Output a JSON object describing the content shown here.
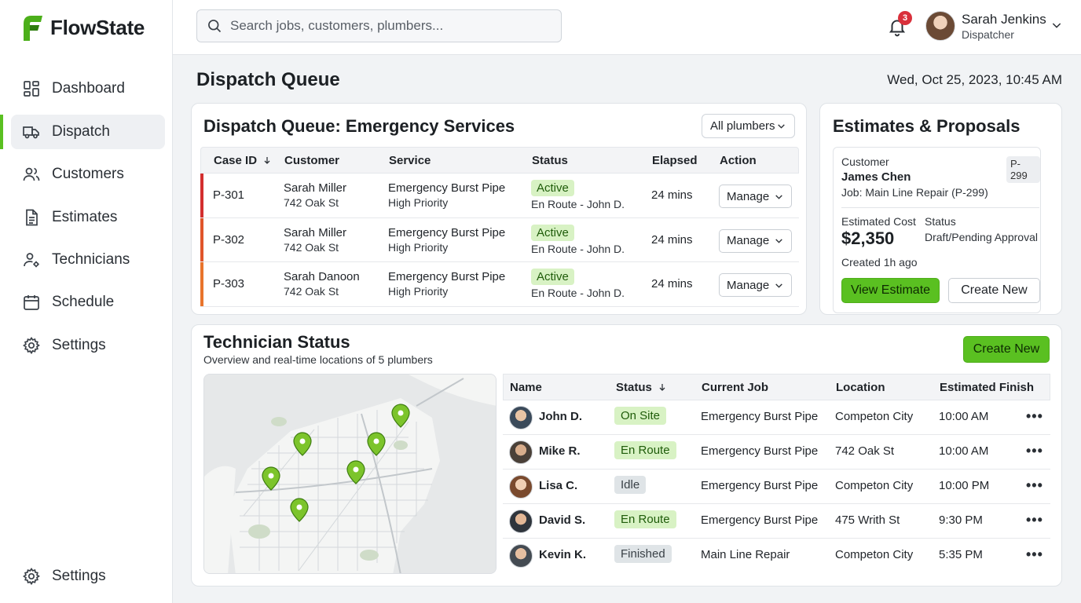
{
  "app": {
    "name": "FlowState"
  },
  "sidebar": {
    "items": [
      {
        "label": "Dashboard",
        "icon": "dashboard-icon"
      },
      {
        "label": "Dispatch",
        "icon": "truck-icon",
        "active": true
      },
      {
        "label": "Customers",
        "icon": "users-icon"
      },
      {
        "label": "Estimates",
        "icon": "document-icon"
      },
      {
        "label": "Technicians",
        "icon": "technician-icon"
      },
      {
        "label": "Schedule",
        "icon": "calendar-icon"
      },
      {
        "label": "Settings",
        "icon": "gear-icon"
      }
    ],
    "footer": {
      "label": "Settings",
      "icon": "gear-icon"
    }
  },
  "topbar": {
    "search_placeholder": "Search jobs, customers, plumbers...",
    "notification_count": "3",
    "user": {
      "name": "Sarah Jenkins",
      "role": "Dispatcher"
    }
  },
  "page": {
    "title": "Dispatch Queue",
    "datetime": "Wed, Oct 25, 2023, 10:45 AM"
  },
  "dispatch": {
    "title": "Dispatch Queue: Emergency Services",
    "filter": "All plumbers",
    "columns": [
      "Case ID",
      "Customer",
      "Service",
      "Status",
      "Elapsed",
      "Action"
    ],
    "rows": [
      {
        "id": "P-301",
        "customer": "Sarah Miller",
        "address": "742 Oak St",
        "service": "Emergency Burst Pipe",
        "priority": "High Priority",
        "status": "Active",
        "status_detail": "En Route - John D.",
        "elapsed": "24 mins",
        "action": "Manage",
        "accent": "#d32f2f"
      },
      {
        "id": "P-302",
        "customer": "Sarah Miller",
        "address": "742 Oak St",
        "service": "Emergency Burst Pipe",
        "priority": "High Priority",
        "status": "Active",
        "status_detail": "En Route - John D.",
        "elapsed": "24 mins",
        "action": "Manage",
        "accent": "#e0552a"
      },
      {
        "id": "P-303",
        "customer": "Sarah Danoon",
        "address": "742 Oak St",
        "service": "Emergency Burst Pipe",
        "priority": "High Priority",
        "status": "Active",
        "status_detail": "En Route - John D.",
        "elapsed": "24 mins",
        "action": "Manage",
        "accent": "#e8742c"
      }
    ]
  },
  "estimates": {
    "title": "Estimates & Proposals",
    "customer_label": "Customer",
    "badge": "P-299",
    "customer_name": "James Chen",
    "job": "Job: Main Line Repair (P-299)",
    "cost_label": "Estimated Cost",
    "cost": "$2,350",
    "status_label": "Status",
    "status": "Draft/Pending Approval",
    "created": "Created 1h ago",
    "view_button": "View Estimate",
    "create_button": "Create New"
  },
  "technicians": {
    "title": "Technician Status",
    "subtitle": "Overview and real-time locations of 5 plumbers",
    "create_button": "Create New",
    "columns": [
      "Name",
      "Status",
      "Current Job",
      "Location",
      "Estimated Finish"
    ],
    "rows": [
      {
        "name": "John D.",
        "status": "On Site",
        "job": "Emergency Burst Pipe",
        "location": "Competon City",
        "finish": "10:00 AM",
        "tone": "green"
      },
      {
        "name": "Mike R.",
        "status": "En Route",
        "job": "Emergency Burst Pipe",
        "location": "742 Oak St",
        "finish": "10:00 AM",
        "tone": "green"
      },
      {
        "name": "Lisa C.",
        "status": "Idle",
        "job": "Emergency Burst Pipe",
        "location": "Competon City",
        "finish": "10:00 PM",
        "tone": "gray"
      },
      {
        "name": "David S.",
        "status": "En Route",
        "job": "Emergency Burst Pipe",
        "location": "475 Writh St",
        "finish": "9:30 PM",
        "tone": "green"
      },
      {
        "name": "Kevin K.",
        "status": "Finished",
        "job": "Main Line Repair",
        "location": "Competon City",
        "finish": "5:35 PM",
        "tone": "gray"
      }
    ]
  },
  "colors": {
    "accent": "#5ac021",
    "pin": "#7cc42b",
    "danger": "#d32f2f"
  }
}
